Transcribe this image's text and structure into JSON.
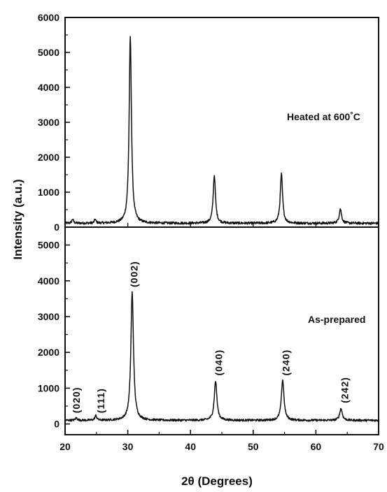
{
  "chart_data": {
    "type": "line",
    "title": "",
    "xlabel": "2θ (Degrees)",
    "ylabel": "Intensity (a.u.)",
    "xlim": [
      20,
      70
    ],
    "x_ticks": [
      20,
      30,
      40,
      50,
      60,
      70
    ],
    "panels": [
      {
        "id": "heated",
        "annotation": "Heated at 600°C",
        "ylim": [
          0,
          6000
        ],
        "y_ticks": [
          0,
          1000,
          2000,
          3000,
          4000,
          5000,
          6000
        ],
        "baseline": 110,
        "noise": 35,
        "peaks": [
          {
            "x": 21.2,
            "y": 230,
            "w": 0.15
          },
          {
            "x": 24.8,
            "y": 220,
            "w": 0.15
          },
          {
            "x": 30.4,
            "y": 5450,
            "w": 0.22
          },
          {
            "x": 43.8,
            "y": 1480,
            "w": 0.22
          },
          {
            "x": 54.5,
            "y": 1520,
            "w": 0.22
          },
          {
            "x": 63.9,
            "y": 530,
            "w": 0.22
          }
        ]
      },
      {
        "id": "as-prepared",
        "annotation": "As-prepared",
        "ylim": [
          -300,
          5500
        ],
        "y_ticks": [
          0,
          1000,
          2000,
          3000,
          4000,
          5000
        ],
        "baseline": 100,
        "noise": 30,
        "peaks": [
          {
            "x": 21.8,
            "y": 170,
            "w": 0.18
          },
          {
            "x": 24.9,
            "y": 230,
            "w": 0.18
          },
          {
            "x": 30.7,
            "y": 3680,
            "w": 0.25
          },
          {
            "x": 44.0,
            "y": 1200,
            "w": 0.25
          },
          {
            "x": 54.7,
            "y": 1230,
            "w": 0.25
          },
          {
            "x": 64.0,
            "y": 430,
            "w": 0.25
          }
        ],
        "peak_labels": [
          {
            "text": "(020)",
            "x": 21.8,
            "y": 300
          },
          {
            "text": "(111)",
            "x": 25.7,
            "y": 300
          },
          {
            "text": "(002)",
            "x": 31.0,
            "y": 3820
          },
          {
            "text": "(040)",
            "x": 44.5,
            "y": 1350
          },
          {
            "text": "(240)",
            "x": 55.2,
            "y": 1350
          },
          {
            "text": "(242)",
            "x": 64.6,
            "y": 580
          }
        ]
      }
    ]
  }
}
